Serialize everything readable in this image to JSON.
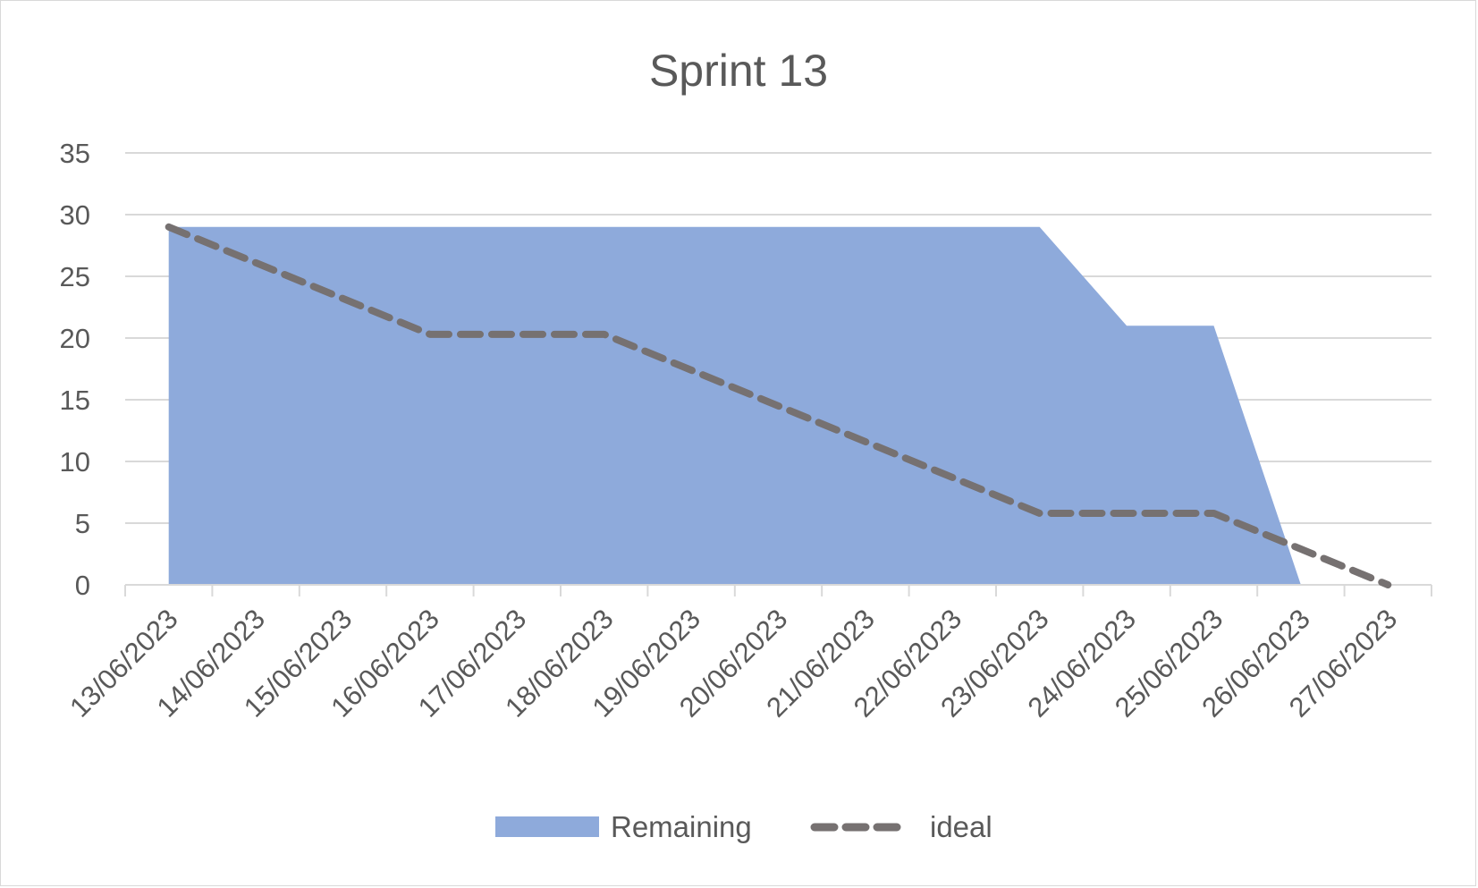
{
  "chart_data": {
    "type": "area",
    "title": "Sprint 13",
    "xlabel": "",
    "ylabel": "",
    "categories": [
      "13/06/2023",
      "14/06/2023",
      "15/06/2023",
      "16/06/2023",
      "17/06/2023",
      "18/06/2023",
      "19/06/2023",
      "20/06/2023",
      "21/06/2023",
      "22/06/2023",
      "23/06/2023",
      "24/06/2023",
      "25/06/2023",
      "26/06/2023",
      "27/06/2023"
    ],
    "ylim": [
      0,
      35
    ],
    "yticks": [
      "0",
      "5",
      "10",
      "15",
      "20",
      "25",
      "30",
      "35"
    ],
    "grid": true,
    "legend_position": "bottom",
    "series": [
      {
        "name": "Remaining",
        "type": "area",
        "color": "#8eaadb",
        "values": [
          29,
          29,
          29,
          29,
          29,
          29,
          29,
          29,
          29,
          29,
          29,
          21,
          21,
          0,
          null
        ]
      },
      {
        "name": "ideal",
        "type": "line",
        "style": "dashed",
        "color": "#767171",
        "values": [
          29,
          26.1,
          23.2,
          20.3,
          20.3,
          20.3,
          17.4,
          14.5,
          11.6,
          8.7,
          5.8,
          5.8,
          5.8,
          2.9,
          0
        ]
      }
    ]
  }
}
